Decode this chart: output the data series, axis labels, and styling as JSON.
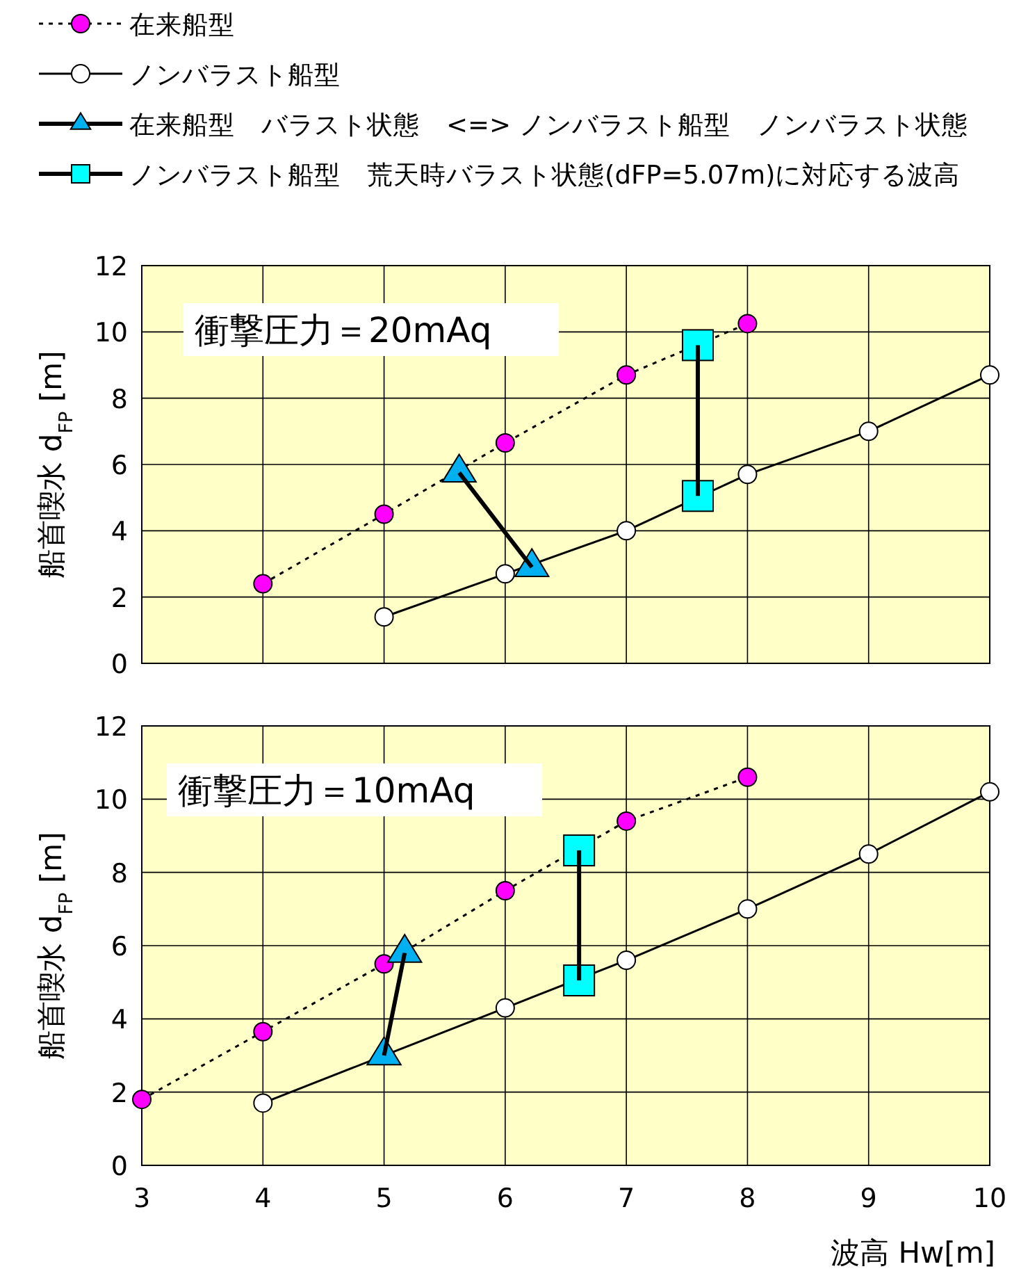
{
  "chart_data": [
    {
      "type": "line",
      "annotations": [
        "衝撃圧力＝20mAq"
      ],
      "ylabel": "船首喫水 d$_{FP}$ [m]",
      "xlim": [
        3,
        10
      ],
      "xticks": [
        3,
        4,
        5,
        6,
        7,
        8,
        9,
        10
      ],
      "ylim": [
        0,
        12
      ],
      "yticks": [
        0,
        2,
        4,
        6,
        8,
        10,
        12
      ],
      "grid": true,
      "legend": "top",
      "tick_labels": "y",
      "series": [
        {
          "name": "在来船型",
          "color": "#ff00ff",
          "marker": "circle",
          "line_style": "dotted",
          "x": [
            4,
            5,
            6,
            7,
            8
          ],
          "values": [
            2.4,
            4.5,
            6.65,
            8.7,
            10.25
          ]
        },
        {
          "name": "ノンバラスト船型",
          "color": "#ffffff",
          "marker": "circle",
          "line_style": "solid",
          "x": [
            5,
            6,
            7,
            8,
            9,
            10
          ],
          "values": [
            1.4,
            2.7,
            4.0,
            5.7,
            7.0,
            8.7
          ]
        },
        {
          "name": "在来船型　バラスト状態　<=> ノンバラスト船型　ノンバラスト状態",
          "color": "#00b0f0",
          "marker": "triangle",
          "line_style": "solid",
          "x": [
            5.62,
            6.22
          ],
          "values": [
            5.75,
            2.9
          ]
        },
        {
          "name": "ノンバラスト船型　荒天時バラスト状態(dFP=5.07m)に対応する波高",
          "color": "#00ffff",
          "marker": "square",
          "line_style": "solid",
          "x": [
            7.59,
            7.59
          ],
          "values": [
            9.6,
            5.05
          ]
        }
      ]
    },
    {
      "type": "line",
      "annotations": [
        "衝撃圧力＝10mAq"
      ],
      "xlabel": "波高 Hw[m]",
      "ylabel": "船首喫水 d$_{FP}$ [m]",
      "xlim": [
        3,
        10
      ],
      "xticks": [
        3,
        4,
        5,
        6,
        7,
        8,
        9,
        10
      ],
      "ylim": [
        0,
        12
      ],
      "yticks": [
        0,
        2,
        4,
        6,
        8,
        10,
        12
      ],
      "grid": true,
      "series": [
        {
          "color": "#ff00ff",
          "marker": "circle",
          "line_style": "dotted",
          "x": [
            3,
            4,
            5,
            6,
            7,
            8
          ],
          "values": [
            1.8,
            3.65,
            5.5,
            7.5,
            9.4,
            10.6
          ]
        },
        {
          "color": "#ffffff",
          "marker": "circle",
          "line_style": "solid",
          "x": [
            4,
            6,
            7,
            8,
            9,
            10
          ],
          "values": [
            1.7,
            4.3,
            5.6,
            7.0,
            8.5,
            10.2
          ]
        },
        {
          "color": "#00b0f0",
          "marker": "triangle",
          "line_style": "solid",
          "x": [
            5.0,
            5.17
          ],
          "values": [
            3.0,
            5.8
          ]
        },
        {
          "color": "#00ffff",
          "marker": "square",
          "line_style": "solid",
          "x": [
            6.61,
            6.61
          ],
          "values": [
            8.6,
            5.05
          ]
        }
      ]
    }
  ]
}
